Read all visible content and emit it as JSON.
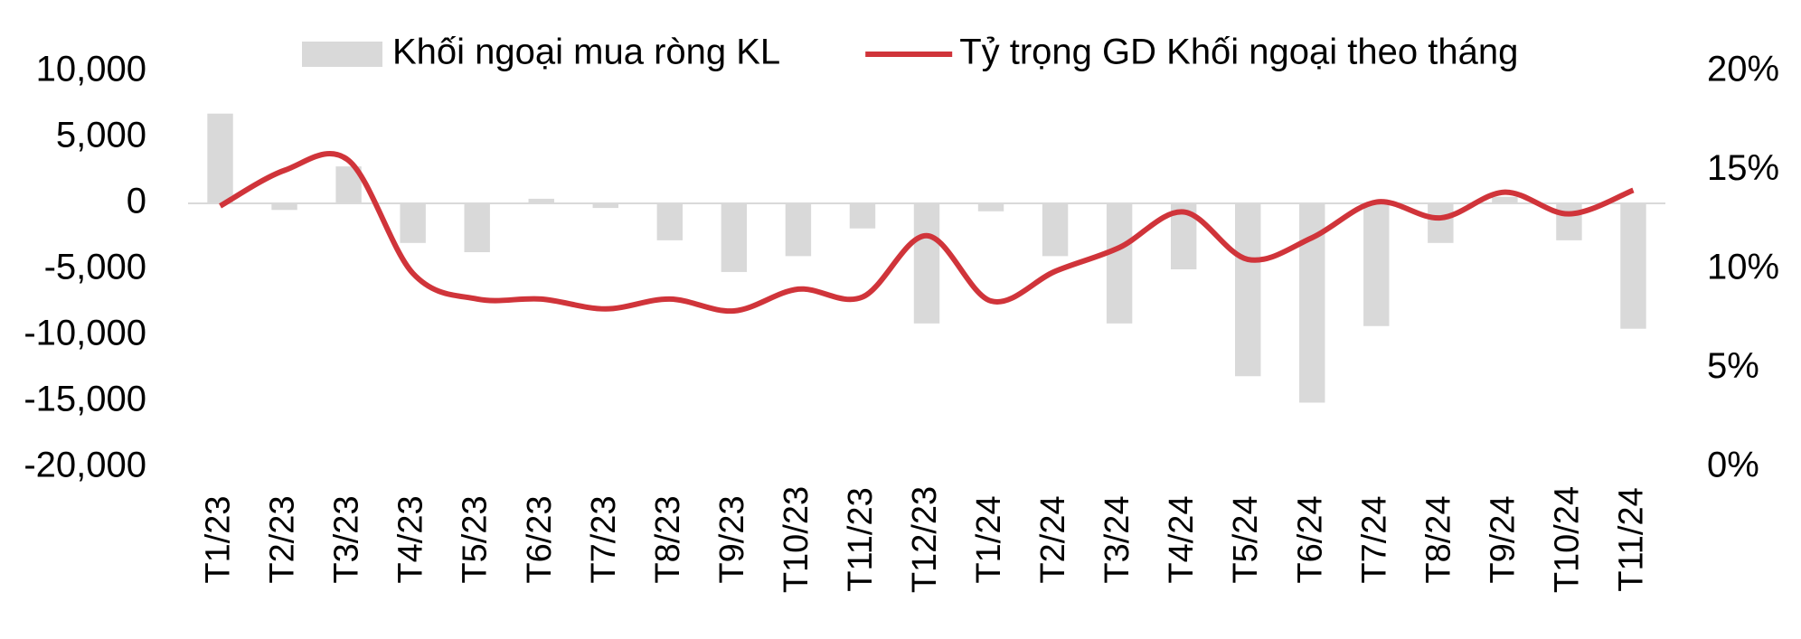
{
  "chart_data": {
    "type": "bar-line",
    "categories": [
      "T1/23",
      "T2/23",
      "T3/23",
      "T4/23",
      "T5/23",
      "T6/23",
      "T7/23",
      "T8/23",
      "T9/23",
      "T10/23",
      "T11/23",
      "T12/23",
      "T1/24",
      "T2/24",
      "T3/24",
      "T4/24",
      "T5/24",
      "T6/24",
      "T7/24",
      "T8/24",
      "T9/24",
      "T10/24",
      "T11/24"
    ],
    "series": [
      {
        "name": "Khối ngoại mua ròng KL",
        "type": "bar",
        "color": "#d9d9d9",
        "values": [
          6800,
          -500,
          2800,
          -3000,
          -3700,
          350,
          -350,
          -2800,
          -5200,
          -4000,
          -1900,
          -9100,
          -600,
          -4000,
          -9100,
          -5000,
          -13100,
          -15100,
          -9300,
          -3000,
          500,
          -2800,
          -9500
        ]
      },
      {
        "name": "Tỷ trọng GD Khối ngoại theo tháng",
        "type": "line",
        "axis": "y2",
        "color": "#d0343a",
        "values": [
          13.2,
          15.0,
          15.5,
          9.8,
          8.5,
          8.5,
          8.0,
          8.5,
          7.9,
          9.0,
          8.6,
          11.7,
          8.4,
          9.9,
          11.1,
          12.9,
          10.5,
          11.6,
          13.4,
          12.6,
          13.9,
          12.8,
          14.0
        ]
      }
    ],
    "ylim": [
      -20000,
      10000
    ],
    "yticks": [
      {
        "value": -20000,
        "label": "-20,000"
      },
      {
        "value": -15000,
        "label": "-15,000"
      },
      {
        "value": -10000,
        "label": "-10,000"
      },
      {
        "value": -5000,
        "label": "-5,000"
      },
      0,
      {
        "value": 5000,
        "label": "5,000"
      },
      {
        "value": 10000,
        "label": "10,000"
      }
    ],
    "y2lim": [
      0,
      20
    ],
    "y2ticks": [
      {
        "value": 0,
        "label": "0%"
      },
      {
        "value": 5,
        "label": "5%"
      },
      {
        "value": 10,
        "label": "10%"
      },
      {
        "value": 15,
        "label": "15%"
      },
      {
        "value": 20,
        "label": "20%"
      }
    ],
    "legend": "top"
  }
}
